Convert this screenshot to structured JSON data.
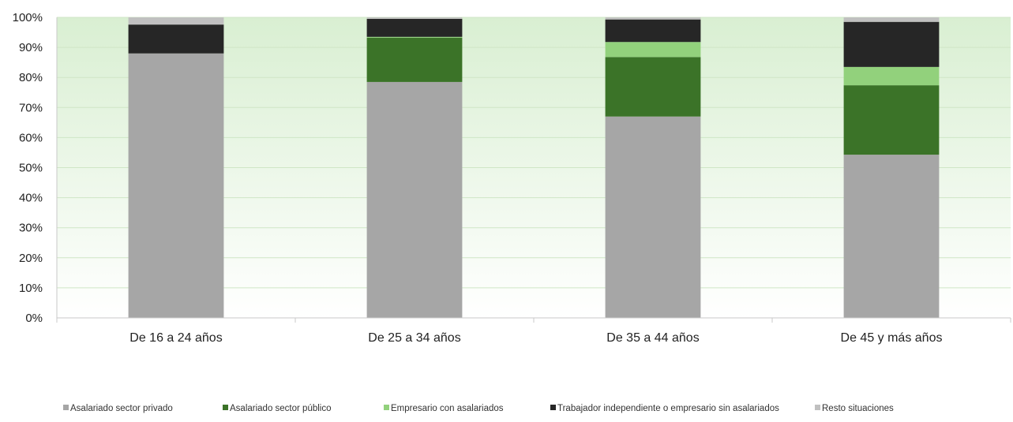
{
  "chart_data": {
    "type": "bar",
    "stacked": true,
    "percent_stacked": true,
    "title": "",
    "xlabel": "",
    "ylabel": "",
    "categories": [
      "De 16 a 24 años",
      "De 25 a 34 años",
      "De 35 a 44 años",
      "De 45 y más años"
    ],
    "y_ticks": [
      "0%",
      "10%",
      "20%",
      "30%",
      "40%",
      "50%",
      "60%",
      "70%",
      "80%",
      "90%",
      "100%"
    ],
    "ylim": [
      0,
      100
    ],
    "grid": true,
    "legend_position": "bottom",
    "series": [
      {
        "name": "Asalariado sector privado",
        "color": "#a6a6a6",
        "values": [
          88,
          78.5,
          67,
          54.3
        ]
      },
      {
        "name": "Asalariado sector público",
        "color": "#3b7328",
        "values": [
          0,
          14.7,
          19.8,
          23.1
        ]
      },
      {
        "name": "Empresario con asalariados",
        "color": "#92d17c",
        "values": [
          0,
          0.3,
          5,
          6.1
        ]
      },
      {
        "name": "Trabajador independiente o empresario sin asalariados",
        "color": "#262626",
        "values": [
          9.6,
          6,
          7.5,
          15
        ]
      },
      {
        "name": "Resto situaciones",
        "color": "#c0c0c0",
        "values": [
          2.4,
          0.5,
          0.7,
          1.5
        ]
      }
    ],
    "plot_background": {
      "top_color": "#d9efd2",
      "bottom_color": "#ffffff"
    }
  }
}
